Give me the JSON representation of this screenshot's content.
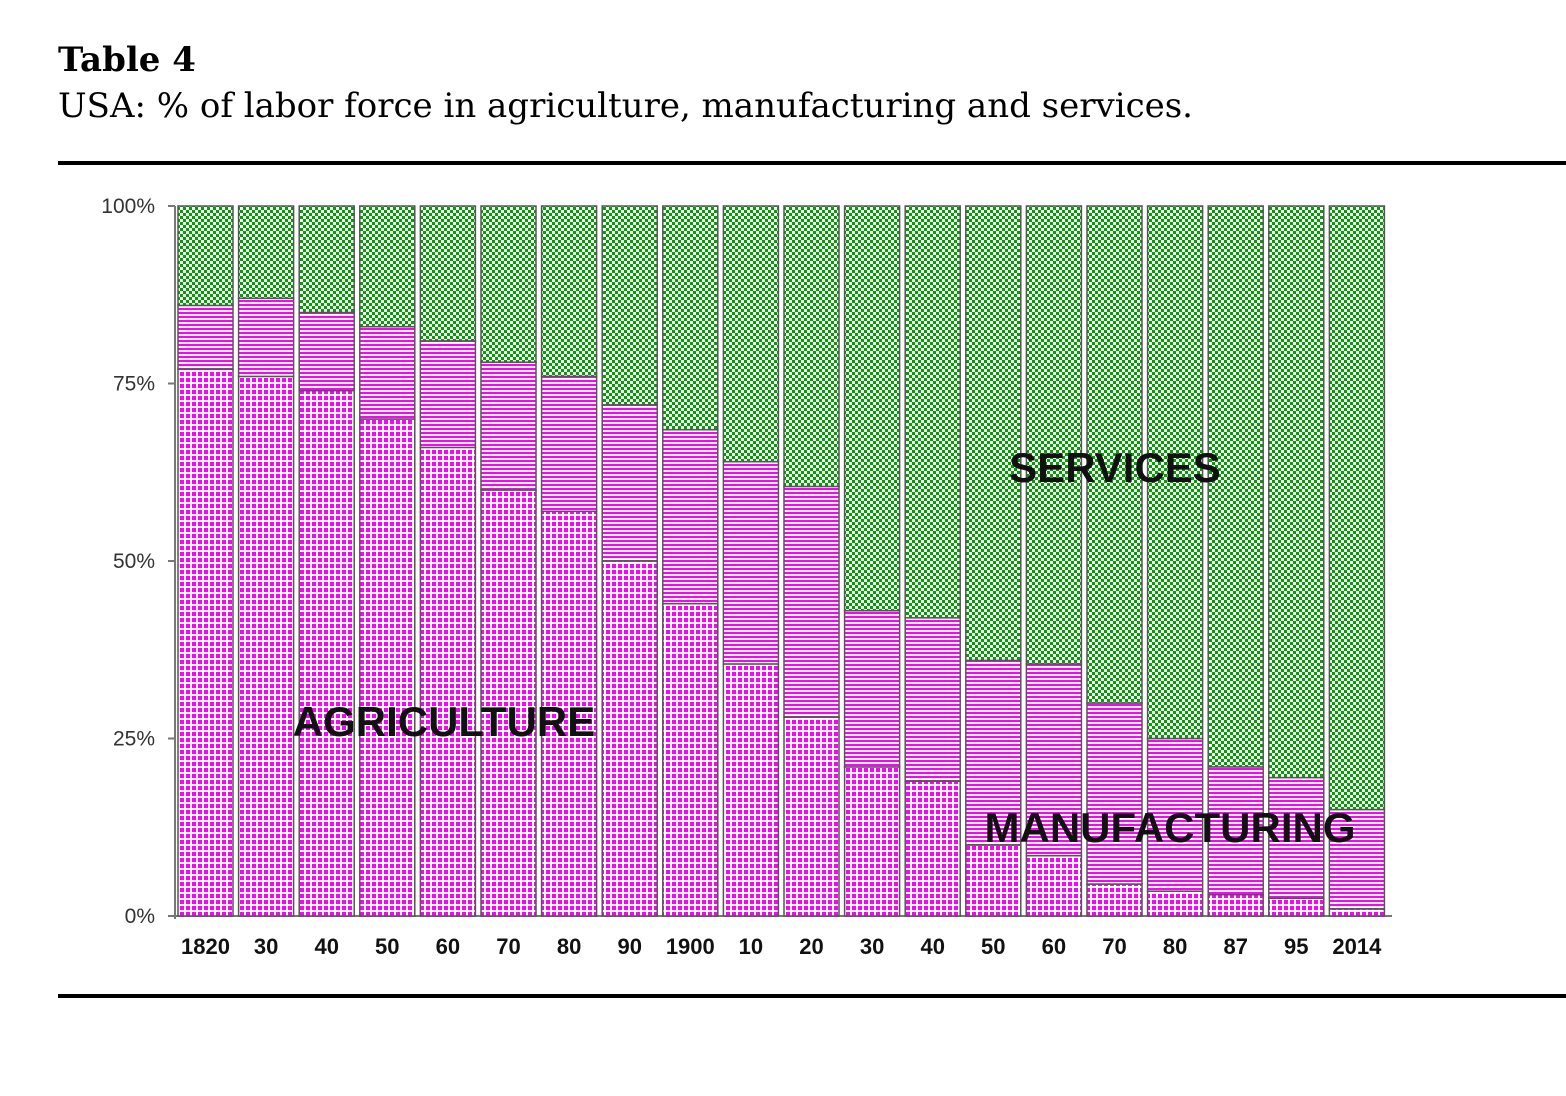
{
  "table_label": "Table 4",
  "caption": "USA: % of labor force in agriculture, manufacturing and services.",
  "colors": {
    "agriculture": "#ff00ff",
    "manufacturing": "#ff00ff",
    "services": "#00a000",
    "bar_outline": "#555555"
  },
  "chart_data": {
    "type": "bar",
    "stacked": true,
    "percent": true,
    "categories": [
      "1820",
      "30",
      "40",
      "50",
      "60",
      "70",
      "80",
      "90",
      "1900",
      "10",
      "20",
      "30",
      "40",
      "50",
      "60",
      "70",
      "80",
      "87",
      "95",
      "2014"
    ],
    "series": [
      {
        "key": "agriculture",
        "values": [
          77,
          76,
          74,
          70,
          66,
          60,
          57,
          50,
          44,
          35.5,
          28,
          21,
          19,
          10,
          8.5,
          4.5,
          3.5,
          3,
          2.5,
          1
        ]
      },
      {
        "key": "manufacturing",
        "values": [
          9,
          11,
          11,
          13,
          15,
          18,
          19,
          22,
          24.5,
          28.5,
          32.5,
          22,
          23,
          26,
          27,
          25.5,
          21.5,
          18,
          17,
          14
        ]
      },
      {
        "key": "services",
        "values": [
          14,
          13,
          15,
          17,
          19,
          22,
          24,
          28,
          31.5,
          36,
          39.5,
          57,
          58,
          64,
          64.5,
          70,
          75,
          79,
          80.5,
          85
        ]
      }
    ],
    "ylim": [
      0,
      100
    ],
    "yticks": [
      "0%",
      "25%",
      "50%",
      "75%",
      "100%"
    ],
    "annotations": [
      {
        "text": "AGRICULTURE",
        "series": "agriculture"
      },
      {
        "text": "SERVICES",
        "series": "services"
      },
      {
        "text": "MANUFACTURING",
        "series": "manufacturing"
      }
    ],
    "grid": false,
    "legend": "none"
  }
}
